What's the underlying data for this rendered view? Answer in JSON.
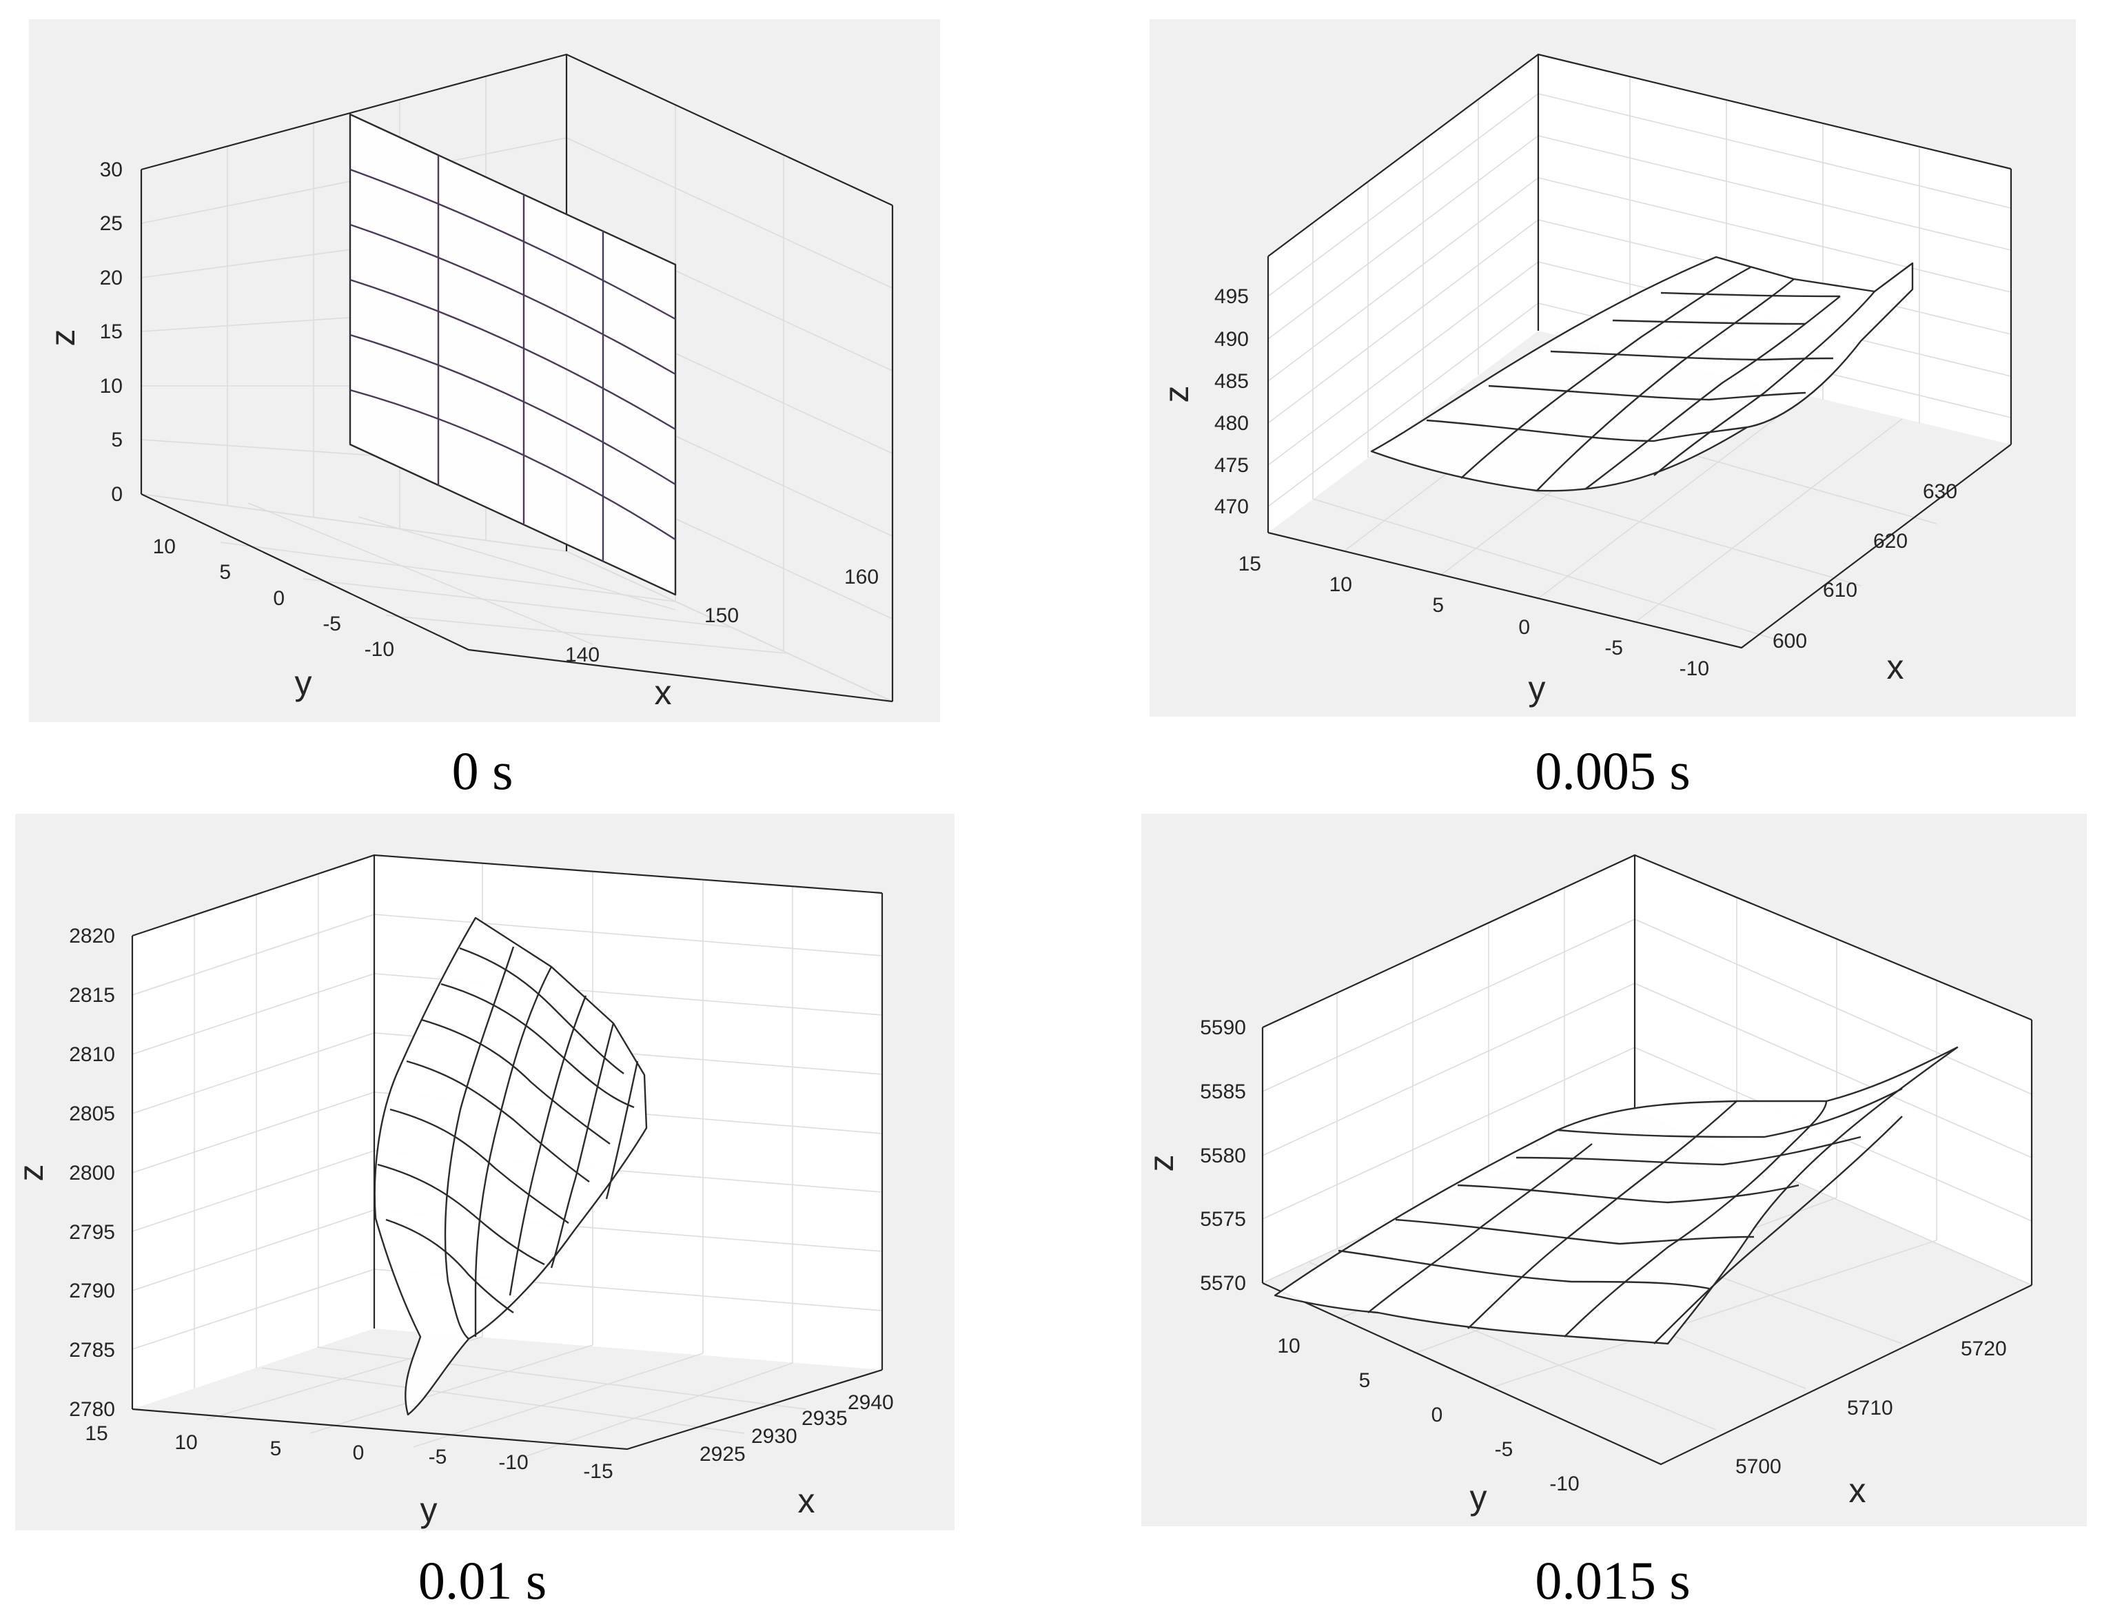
{
  "chart_data": [
    {
      "type": "surface",
      "caption": "0 s",
      "xlabel": "x",
      "ylabel": "y",
      "zlabel": "z",
      "x_ticks": [
        "140",
        "150",
        "160"
      ],
      "y_ticks": [
        "10",
        "5",
        "0",
        "-5",
        "-10"
      ],
      "z_ticks": [
        "0",
        "5",
        "10",
        "15",
        "20",
        "25",
        "30"
      ],
      "xlim": [
        130,
        168
      ],
      "ylim": [
        -15,
        15
      ],
      "zlim": [
        0,
        30
      ],
      "grid": true,
      "mesh_description": "vertical flat plate at x≈150 spanning y from -12 to 12 and z from 0 to 30",
      "mesh": {
        "x": [
          150,
          150
        ],
        "y": [
          12,
          -12
        ],
        "z": [
          0,
          30
        ],
        "rows": 7,
        "cols": 5
      }
    },
    {
      "type": "surface",
      "caption": "0.005 s",
      "xlabel": "x",
      "ylabel": "y",
      "zlabel": "z",
      "x_ticks": [
        "600",
        "610",
        "620",
        "630"
      ],
      "y_ticks": [
        "15",
        "10",
        "5",
        "0",
        "-5",
        "-10"
      ],
      "z_ticks": [
        "470",
        "475",
        "480",
        "485",
        "490",
        "495"
      ],
      "xlim": [
        595,
        635
      ],
      "ylim": [
        -12,
        16
      ],
      "zlim": [
        467,
        500
      ],
      "grid": true,
      "mesh": {
        "x": [
          598,
          625
        ],
        "y": [
          14,
          -12
        ],
        "z": [
          475,
          495
        ],
        "rows": 6,
        "cols": 6
      }
    },
    {
      "type": "surface",
      "caption": "0.01 s",
      "xlabel": "x",
      "ylabel": "y",
      "zlabel": "z",
      "x_ticks": [
        "2925",
        "2930",
        "2935",
        "2940"
      ],
      "y_ticks": [
        "15",
        "10",
        "5",
        "0",
        "-5",
        "-10",
        "-15"
      ],
      "z_ticks": [
        "2780",
        "2785",
        "2790",
        "2795",
        "2800",
        "2805",
        "2810",
        "2815",
        "2820"
      ],
      "xlim": [
        2920,
        2942
      ],
      "ylim": [
        -17,
        15
      ],
      "zlim": [
        2780,
        2820
      ],
      "grid": true,
      "mesh": {
        "x": [
          2926,
          2938
        ],
        "y": [
          12,
          -12
        ],
        "z": [
          2780,
          2819
        ],
        "rows": 7,
        "cols": 6
      }
    },
    {
      "type": "surface",
      "caption": "0.015 s",
      "xlabel": "x",
      "ylabel": "y",
      "zlabel": "z",
      "x_ticks": [
        "5700",
        "5710",
        "5720"
      ],
      "y_ticks": [
        "10",
        "5",
        "0",
        "-5",
        "-10"
      ],
      "z_ticks": [
        "5570",
        "5575",
        "5580",
        "5585",
        "5590"
      ],
      "xlim": [
        5695,
        5725
      ],
      "ylim": [
        -13,
        14
      ],
      "zlim": [
        5568,
        5592
      ],
      "grid": true,
      "mesh": {
        "x": [
          5698,
          5722
        ],
        "y": [
          12,
          -12
        ],
        "z": [
          5570,
          5588
        ],
        "rows": 5,
        "cols": 6
      }
    }
  ]
}
